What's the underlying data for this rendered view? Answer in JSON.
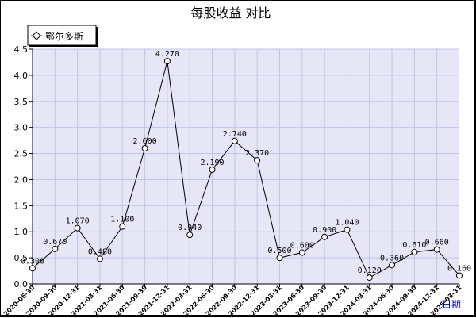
{
  "chart_data": {
    "type": "line",
    "title": "每股收益  对比",
    "x_axis_label": "日期",
    "legend_position": "top-left",
    "grid": true,
    "ylim": [
      0,
      4.5
    ],
    "y_ticks": [
      "0.0",
      "0.5",
      "1.0",
      "1.5",
      "2.0",
      "2.5",
      "3.0",
      "3.5",
      "4.0",
      "4.5"
    ],
    "categories": [
      "2020-06-30",
      "2020-09-30",
      "2020-12-31",
      "2021-03-31",
      "2021-06-30",
      "2021-09-30",
      "2021-12-31",
      "2022-03-31",
      "2022-06-30",
      "2022-09-30",
      "2022-12-31",
      "2023-03-31",
      "2023-06-30",
      "2023-09-30",
      "2023-12-31",
      "2024-03-31",
      "2024-06-30",
      "2024-09-30",
      "2024-12-31",
      "2025-03-31"
    ],
    "series": [
      {
        "name": "鄂尔多斯",
        "values": [
          0.3,
          0.67,
          1.07,
          0.48,
          1.1,
          2.6,
          4.27,
          0.94,
          2.19,
          2.74,
          2.37,
          0.5,
          0.6,
          0.9,
          1.04,
          0.12,
          0.36,
          0.61,
          0.66,
          0.16
        ],
        "labels": [
          "0.300",
          "0.670",
          "1.070",
          "0.480",
          "1.100",
          "2.600",
          "4.270",
          "0.940",
          "2.190",
          "2.740",
          "2.370",
          "0.500",
          "0.600",
          "0.900",
          "1.040",
          "0.120",
          "0.360",
          "0.610",
          "0.660",
          "0.160"
        ]
      }
    ]
  },
  "colors": {
    "plot_bg": "#e6e6f7",
    "grid": "#c3c3e8",
    "line": "#000000",
    "x_label": "#0000cc"
  }
}
